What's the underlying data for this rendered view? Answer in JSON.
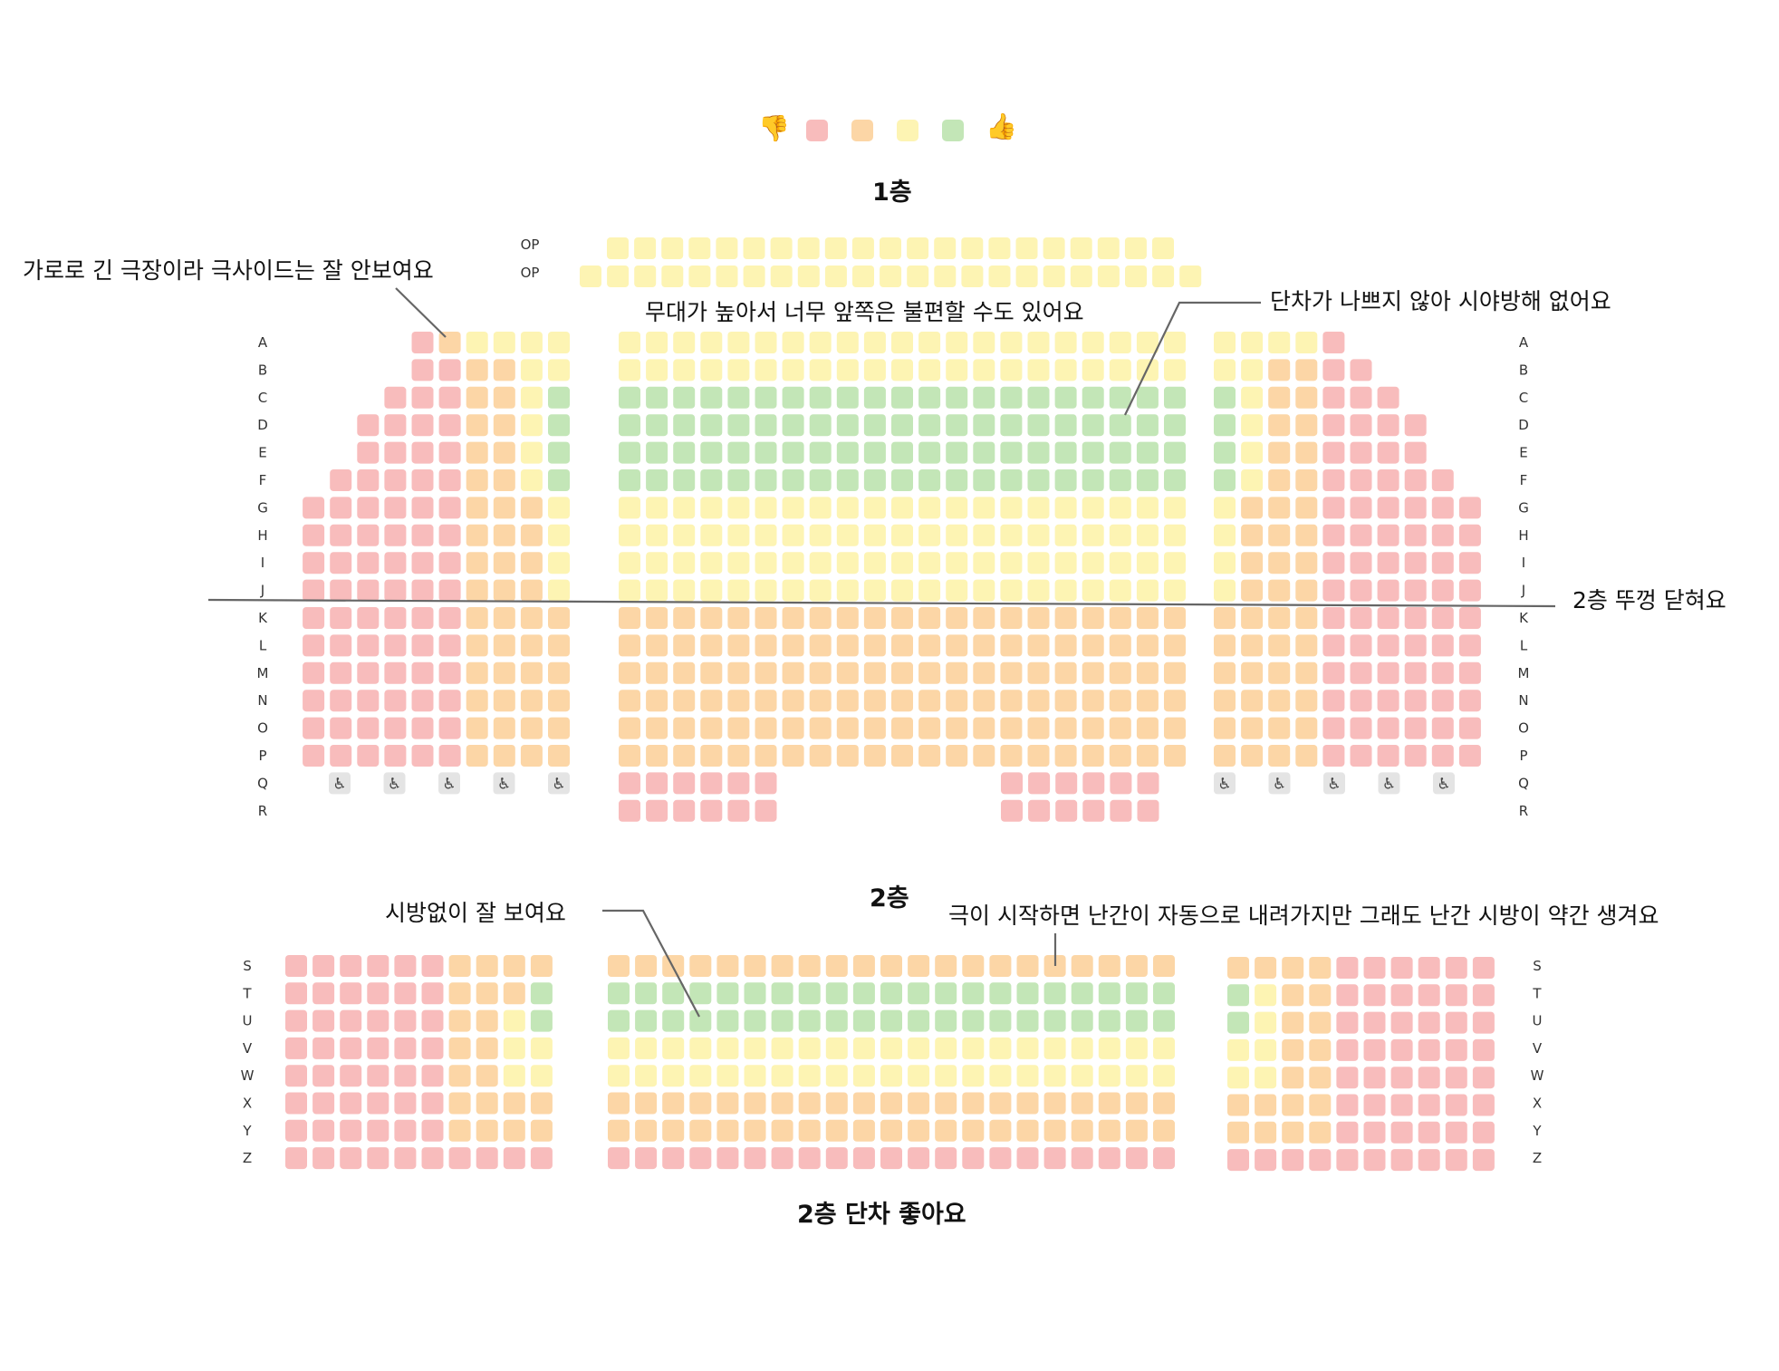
{
  "legend": {
    "bad_icon": "thumbs-down-icon",
    "good_icon": "thumbs-up-icon",
    "colors": [
      "#f8bcbc",
      "#fcd6a6",
      "#fdf4b3",
      "#c3e6b7"
    ]
  },
  "colors": {
    "1": "#f8bcbc",
    "2": "#fcd6a6",
    "3": "#fdf4b3",
    "4": "#c3e6b7",
    "wheel_bg": "#e4e4e4",
    "line": "#666666"
  },
  "floor1": {
    "title": "1층",
    "op_label": "OP",
    "row_labels": [
      "A",
      "B",
      "C",
      "D",
      "E",
      "F",
      "G",
      "H",
      "I",
      "J",
      "K",
      "L",
      "M",
      "N",
      "O",
      "P",
      "Q",
      "R"
    ],
    "op_rows": [
      "333333333333333333333",
      "33333333333333333333333"
    ],
    "left": [
      "123333",
      "112233",
      "1112234",
      "11112234",
      "11112234",
      "111112234",
      "1111112223",
      "1111112223",
      "1111112223",
      "1111112223",
      "1111112222",
      "1111112222",
      "1111112222",
      "1111112222",
      "1111112222",
      "1111112222"
    ],
    "center": [
      "333333333333333333333",
      "333333333333333333333",
      "444444444444444444444",
      "444444444444444444444",
      "444444444444444444444",
      "444444444444444444444",
      "333333333333333333333",
      "333333333333333333333",
      "333333333333333333333",
      "333333333333333333333",
      "222222222222222222222",
      "222222222222222222222",
      "222222222222222222222",
      "222222222222222222222",
      "222222222222222222222",
      "222222222222222222222"
    ],
    "center_back": [
      "111111",
      "111111"
    ],
    "right": [
      "33331",
      "332211",
      "4322111",
      "43221111",
      "43221111",
      "432211111",
      "3222111111",
      "3222111111",
      "3222111111",
      "3222111111",
      "2222111111",
      "2222111111",
      "2222111111",
      "2222111111",
      "2222111111",
      "2222111111"
    ],
    "wheelchair_count": 5
  },
  "floor2": {
    "title": "2층",
    "row_labels": [
      "S",
      "T",
      "U",
      "V",
      "W",
      "X",
      "Y",
      "Z"
    ],
    "left": [
      "1111112222",
      "1111112224",
      "1111112234",
      "1111112233",
      "1111112233",
      "1111112222",
      "1111112222",
      "1111111111"
    ],
    "center": [
      "222222222222222222222",
      "444444444444444444444",
      "444444444444444444444",
      "333333333333333333333",
      "333333333333333333333",
      "222222222222222222222",
      "222222222222222222222",
      "111111111111111111111"
    ],
    "right": [
      "2222111111",
      "4322111111",
      "4322111111",
      "3322111111",
      "3322111111",
      "2222111111",
      "2222111111",
      "1111111111"
    ]
  },
  "annotations": {
    "side_view": "가로로 긴 극장이라 극사이드는 잘 안보여요",
    "stage_high": "무대가 높아서 너무 앞쪽은 불편할 수도 있어요",
    "rake": "단차가 나쁘지 않아 시야방해 없어요",
    "floor2_cover": "2층 뚜껑 닫혀요",
    "no_obstruction": "시방없이 잘 보여요",
    "railing": "극이 시작하면 난간이 자동으로 내려가지만 그래도 난간 시방이 약간 생겨요",
    "floor2_rake": "2층 단차 좋아요"
  }
}
